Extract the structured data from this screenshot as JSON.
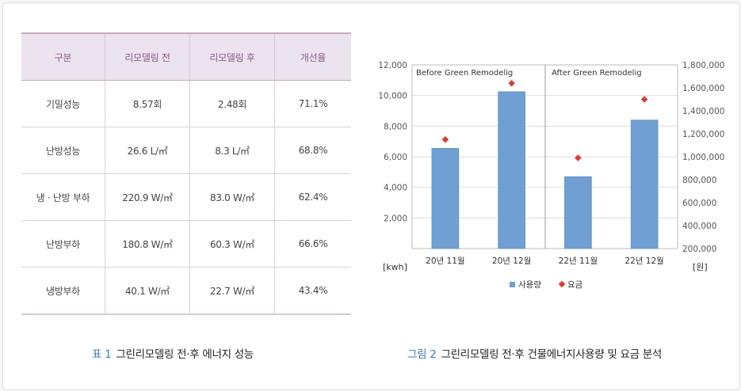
{
  "table": {
    "headers": [
      "구분",
      "리모델링 전",
      "리모델링 후",
      "개선율"
    ],
    "rows": [
      [
        "기밀성능",
        "8.57회",
        "2.48회",
        "71.1%"
      ],
      [
        "난방성능",
        "26.6 L/㎡",
        "8.3 L/㎡",
        "68.8%"
      ],
      [
        "냉 · 난방 부하",
        "220.9 W/㎡",
        "83.0 W/㎡",
        "62.4%"
      ],
      [
        "난방부하",
        "180.8 W/㎡",
        "60.3 W/㎡",
        "66.6%"
      ],
      [
        "냉방부하",
        "40.1 W/㎡",
        "22.7 W/㎡",
        "43.4%"
      ]
    ],
    "caption_num": "표 1",
    "caption_text": "그린리모델링 전·후 에너지 성능"
  },
  "figure": {
    "caption_num": "그림 2",
    "caption_text": "그린리모델링 전·후 건물에너지사용량 및 요금 분석"
  },
  "colors": {
    "bar": "#6f9fd3",
    "fee": "#e03a2f",
    "caption_num": "#3a7bbf",
    "header_text": "#8d5a8a"
  },
  "chart_data": {
    "type": "bar",
    "categories": [
      "20년 11월",
      "20년 12월",
      "22년 11월",
      "22년 12월"
    ],
    "series": [
      {
        "name": "사용량",
        "type": "bar",
        "axis": "left",
        "values": [
          6550,
          10250,
          4700,
          8400
        ]
      },
      {
        "name": "요금",
        "type": "scatter",
        "axis": "right",
        "values": [
          1150000,
          1640000,
          990000,
          1500000
        ]
      }
    ],
    "ylim": [
      0,
      12000
    ],
    "y_ticks": [
      "2,000",
      "4,000",
      "6,000",
      "8,000",
      "10,000",
      "12,000"
    ],
    "y_tick_values": [
      2000,
      4000,
      6000,
      8000,
      10000,
      12000
    ],
    "y2lim": [
      200000,
      1800000
    ],
    "y2_ticks": [
      "200,000",
      "400,000",
      "600,000",
      "800,000",
      "1,000,000",
      "1,200,000",
      "1,400,000",
      "1,600,000",
      "1,800,000"
    ],
    "y2_tick_values": [
      200000,
      400000,
      600000,
      800000,
      1000000,
      1200000,
      1400000,
      1600000,
      1800000
    ],
    "ylabel": "[kwh]",
    "y2label": "[원]",
    "annotations": [
      "Before Green Remodelig",
      "After Green Remodelig"
    ],
    "grid": true,
    "legend": "bottom"
  }
}
